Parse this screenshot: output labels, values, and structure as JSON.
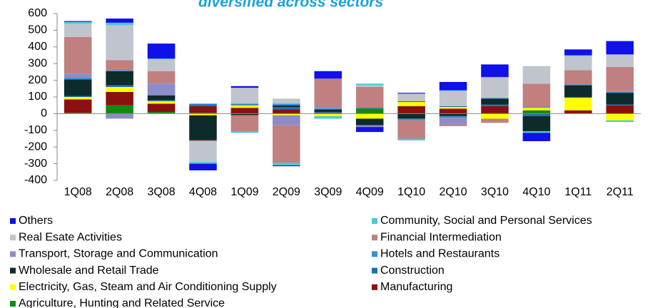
{
  "chart_data": {
    "type": "stacked_bar",
    "title": "diversified across sectors",
    "categories": [
      "1Q08",
      "2Q08",
      "3Q08",
      "4Q08",
      "1Q09",
      "2Q09",
      "3Q09",
      "4Q09",
      "1Q10",
      "2Q10",
      "3Q10",
      "4Q10",
      "1Q11",
      "2Q11"
    ],
    "ylim": [
      -400,
      600
    ],
    "yticks": [
      -400,
      -300,
      -200,
      -100,
      0,
      100,
      200,
      300,
      400,
      500,
      600
    ],
    "series": [
      {
        "name": "Agriculture, Hunting and Related Service",
        "color": "#108a10",
        "values": [
          5,
          50,
          10,
          5,
          0,
          0,
          0,
          30,
          0,
          0,
          0,
          20,
          0,
          0
        ]
      },
      {
        "name": "Manufacturing",
        "color": "#8b1010",
        "values": [
          80,
          80,
          50,
          40,
          35,
          25,
          5,
          0,
          45,
          30,
          45,
          0,
          20,
          50
        ]
      },
      {
        "name": "Electricity, Gas, Steam and Air Conditioning Supply",
        "color": "#ffff00",
        "values": [
          15,
          30,
          15,
          -10,
          15,
          -10,
          -15,
          -30,
          25,
          10,
          -30,
          15,
          75,
          -40
        ]
      },
      {
        "name": "Construction",
        "color": "#1a70b0",
        "values": [
          5,
          10,
          5,
          10,
          5,
          15,
          5,
          5,
          5,
          5,
          10,
          -15,
          5,
          5
        ]
      },
      {
        "name": "Wholesale and Retail Trade",
        "color": "#0d2b2b",
        "values": [
          100,
          85,
          30,
          -150,
          -10,
          10,
          15,
          -40,
          -30,
          -15,
          35,
          -90,
          70,
          70
        ]
      },
      {
        "name": "Hotels and Restaurants",
        "color": "#3a8fd0",
        "values": [
          10,
          5,
          0,
          5,
          5,
          10,
          5,
          0,
          -10,
          -10,
          5,
          5,
          5,
          5
        ]
      },
      {
        "name": "Transport, Storage and Communication",
        "color": "#8c8cc8",
        "values": [
          25,
          -30,
          70,
          0,
          0,
          -60,
          10,
          -10,
          0,
          -40,
          0,
          0,
          0,
          5
        ]
      },
      {
        "name": "Financial Intermediation",
        "color": "#c08080",
        "values": [
          220,
          60,
          75,
          -5,
          -95,
          -225,
          170,
          125,
          -110,
          -10,
          -25,
          140,
          85,
          145
        ]
      },
      {
        "name": "Real Esate Activities",
        "color": "#c0c4cc",
        "values": [
          80,
          210,
          70,
          -125,
          95,
          30,
          0,
          10,
          45,
          90,
          120,
          105,
          85,
          75
        ]
      },
      {
        "name": "Community, Social and Personal Services",
        "color": "#4bc8d8",
        "values": [
          10,
          15,
          5,
          -10,
          -10,
          -15,
          -15,
          10,
          -10,
          5,
          5,
          -10,
          5,
          -10
        ]
      },
      {
        "name": "Others",
        "color": "#1010e8",
        "values": [
          5,
          25,
          90,
          -40,
          10,
          -5,
          45,
          -30,
          5,
          50,
          75,
          -50,
          35,
          80
        ]
      }
    ]
  }
}
